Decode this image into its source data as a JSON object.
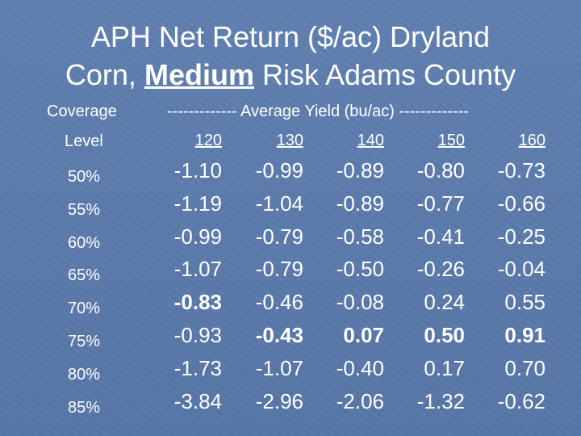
{
  "title": {
    "line1": "APH Net Return ($/ac) Dryland",
    "line2_pre": "Corn, ",
    "line2_emph": "Medium",
    "line2_post": " Risk Adams County"
  },
  "header": {
    "coverage": "Coverage",
    "level": "Level",
    "average_yield": "------------- Average Yield (bu/ac) -------------",
    "yields": [
      "120",
      "130",
      "140",
      "150",
      "160"
    ]
  },
  "rows": [
    {
      "level": "50%",
      "values": [
        "-1.10",
        "-0.99",
        "-0.89",
        "-0.80",
        "-0.73"
      ]
    },
    {
      "level": "55%",
      "values": [
        "-1.19",
        "-1.04",
        "-0.89",
        "-0.77",
        "-0.66"
      ]
    },
    {
      "level": "60%",
      "values": [
        "-0.99",
        "-0.79",
        "-0.58",
        "-0.41",
        "-0.25"
      ]
    },
    {
      "level": "65%",
      "values": [
        "-1.07",
        "-0.79",
        "-0.50",
        "-0.26",
        "-0.04"
      ]
    },
    {
      "level": "70%",
      "values": [
        "-0.83",
        "-0.46",
        "-0.08",
        "0.24",
        "0.55"
      ]
    },
    {
      "level": "75%",
      "values": [
        "-0.93",
        "-0.43",
        "0.07",
        "0.50",
        "0.91"
      ]
    },
    {
      "level": "80%",
      "values": [
        "-1.73",
        "-1.07",
        "-0.40",
        "0.17",
        "0.70"
      ]
    },
    {
      "level": "85%",
      "values": [
        "-3.84",
        "-2.96",
        "-2.06",
        "-1.32",
        "-0.62"
      ]
    }
  ],
  "highlighted_cells": [
    "rows.4.values.0",
    "rows.5.values.1",
    "rows.5.values.2",
    "rows.5.values.3",
    "rows.5.values.4"
  ]
}
